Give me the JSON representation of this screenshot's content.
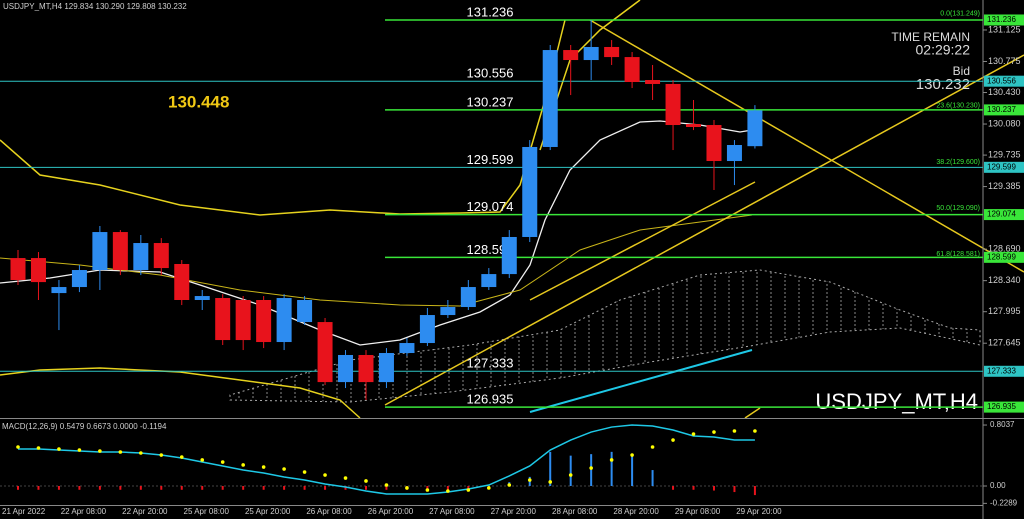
{
  "chart_data": {
    "type": "candlestick",
    "header": "USDJPY_MT,H4  129.834 130.290 129.808 130.232",
    "categories": [
      "21 Apr 2022",
      null,
      null,
      "22 Apr 08:00",
      null,
      null,
      "22 Apr 20:00",
      null,
      null,
      "25 Apr 08:00",
      null,
      null,
      "25 Apr 20:00",
      null,
      null,
      "26 Apr 08:00",
      null,
      null,
      "26 Apr 20:00",
      null,
      null,
      "27 Apr 08:00",
      null,
      null,
      "27 Apr 20:00",
      null,
      null,
      "28 Apr 08:00",
      null,
      null,
      "28 Apr 20:00",
      null,
      null,
      "29 Apr 08:00",
      null,
      null,
      "29 Apr 20:00"
    ],
    "open": [
      128.591,
      128.591,
      128.202,
      128.269,
      128.458,
      128.88,
      128.458,
      128.758,
      128.525,
      128.125,
      128.147,
      128.125,
      128.125,
      127.658,
      127.88,
      127.88,
      127.213,
      127.514,
      127.213,
      127.536,
      127.647,
      127.958,
      128.047,
      128.269,
      128.413,
      128.825,
      129.825,
      130.902,
      130.791,
      130.936,
      130.824,
      130.569,
      130.525,
      130.08,
      130.069,
      129.669,
      129.834
    ],
    "high": [
      128.68,
      128.658,
      128.347,
      128.514,
      128.947,
      128.902,
      128.847,
      128.813,
      128.569,
      128.236,
      128.191,
      128.169,
      128.169,
      128.191,
      128.169,
      127.925,
      127.569,
      127.569,
      127.591,
      127.702,
      128.036,
      128.125,
      128.347,
      128.48,
      128.902,
      129.902,
      130.958,
      130.958,
      131.236,
      131.013,
      130.88,
      130.736,
      130.569,
      130.347,
      130.125,
      129.902,
      130.29
    ],
    "low": [
      128.291,
      128.125,
      127.791,
      128.213,
      128.236,
      128.402,
      128.402,
      128.402,
      128.069,
      128.014,
      127.625,
      127.569,
      127.591,
      127.569,
      127.847,
      127.18,
      127.147,
      127.014,
      127.147,
      127.502,
      127.614,
      127.925,
      128.014,
      128.236,
      128.369,
      128.769,
      129.791,
      130.402,
      130.569,
      130.736,
      130.48,
      130.347,
      129.791,
      130.013,
      129.347,
      129.402,
      129.808
    ],
    "close": [
      128.347,
      128.324,
      128.269,
      128.458,
      128.88,
      128.458,
      128.758,
      128.48,
      128.125,
      128.169,
      127.68,
      127.68,
      127.658,
      128.147,
      128.125,
      127.213,
      127.514,
      127.213,
      127.536,
      127.647,
      127.958,
      128.047,
      128.269,
      128.413,
      128.825,
      129.825,
      130.902,
      130.791,
      130.936,
      130.824,
      130.547,
      130.525,
      130.069,
      130.047,
      129.669,
      129.847,
      130.232
    ],
    "up_color": "#2d8cf0",
    "down_color": "#e8131c",
    "ylim": [
      126.814,
      131.458
    ],
    "yticks": [
      131.125,
      130.775,
      {
        "value": 130.43,
        "label": "130.430"
      },
      {
        "value": 130.08,
        "label": "130.080"
      },
      129.735,
      129.385,
      {
        "value": 128.69,
        "label": "128.690"
      },
      {
        "value": 128.34,
        "label": "128.340"
      },
      127.995,
      127.645
    ],
    "levels": [
      131.236,
      130.556,
      130.237,
      129.599,
      129.074,
      128.599,
      127.333,
      126.935
    ],
    "level_colors": [
      "#39e639",
      "#2ec4c4",
      "#39e639",
      "#2ec4c4",
      "#39e639",
      "#39e639",
      "#2ec4c4",
      "#39e639"
    ],
    "fib": [
      {
        "value": 131.249,
        "label": "0.0(131.249)"
      },
      {
        "value": 130.23,
        "label": "23.6(130.230)"
      },
      {
        "value": 129.6,
        "label": "38.2(129.600)"
      },
      {
        "value": 129.09,
        "label": "50.0(129.090)"
      },
      {
        "value": 128.581,
        "label": "61.8(128.581)"
      }
    ],
    "annotation": "130.448",
    "time_remain_label": "TIME REMAIN",
    "time_remain": "02:29:22",
    "bid_label": "Bid",
    "bid": 130.232,
    "watermark": "USDJPY_MT,H4",
    "macd": {
      "label": "MACD(12,26,9) 0.5479 0.6673 0.0000 -0.1194",
      "ylim": [
        -0.277,
        0.87
      ],
      "yticks": [
        0.8037,
        {
          "value": 0,
          "label": "0.00"
        },
        -0.2289
      ],
      "line_color": "#1ec8e6",
      "signal_color": "#ffff00",
      "line": [
        0.487,
        0.487,
        0.474,
        0.461,
        0.448,
        0.448,
        0.435,
        0.408,
        0.369,
        0.316,
        0.264,
        0.211,
        0.171,
        0.119,
        0.079,
        0.026,
        -0.013,
        -0.066,
        -0.105,
        -0.105,
        -0.105,
        -0.079,
        -0.04,
        0.013,
        0.132,
        0.264,
        0.474,
        0.606,
        0.711,
        0.777,
        0.804,
        0.791,
        0.738,
        0.659,
        0.646,
        0.606,
        0.606
      ],
      "signal": [
        0.514,
        0.501,
        0.487,
        0.474,
        0.461,
        0.448,
        0.435,
        0.408,
        0.382,
        0.343,
        0.316,
        0.277,
        0.25,
        0.224,
        0.184,
        0.145,
        0.105,
        0.066,
        0.013,
        -0.026,
        -0.053,
        -0.066,
        -0.053,
        -0.026,
        0.013,
        0.079,
        0.053,
        0.145,
        0.237,
        0.343,
        0.408,
        0.514,
        0.606,
        0.685,
        0.711,
        0.725,
        0.725
      ],
      "histogram": [
        -0.05,
        -0.05,
        -0.05,
        -0.05,
        -0.05,
        -0.05,
        -0.05,
        -0.05,
        -0.05,
        -0.05,
        -0.05,
        -0.05,
        -0.05,
        -0.05,
        -0.05,
        -0.05,
        -0.05,
        -0.05,
        -0.05,
        -0.05,
        -0.05,
        -0.05,
        -0.05,
        -0.03,
        0.05,
        0.12,
        0.45,
        0.4,
        0.42,
        0.45,
        0.41,
        0.21,
        -0.05,
        -0.05,
        -0.06,
        -0.08,
        -0.12
      ]
    }
  }
}
